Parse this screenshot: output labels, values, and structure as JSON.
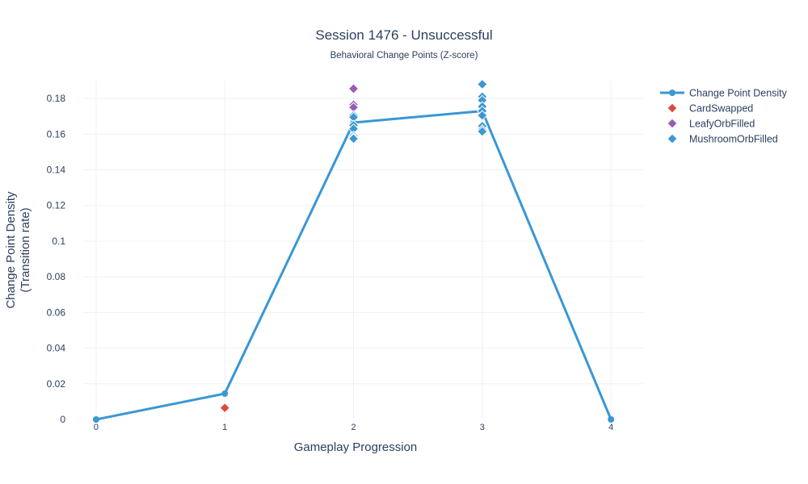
{
  "chart_data": {
    "type": "line",
    "title": "Session 1476 - Unsuccessful",
    "subtitle": "Behavioral Change Points (Z-score)",
    "xlabel": "Gameplay Progression",
    "ylabel_line1": "Change Point Density",
    "ylabel_line2": "(Transition rate)",
    "xlim": [
      -0.1,
      4.25
    ],
    "ylim": [
      0,
      0.19
    ],
    "x_ticks": [
      0,
      1,
      2,
      3,
      4
    ],
    "x_tick_labels": [
      "0",
      "1",
      "2",
      "3",
      "4"
    ],
    "y_ticks": [
      0,
      0.02,
      0.04,
      0.06,
      0.08,
      0.1,
      0.12,
      0.14,
      0.16,
      0.18
    ],
    "y_tick_labels": [
      "0",
      "0.02",
      "0.04",
      "0.06",
      "0.08",
      "0.1",
      "0.12",
      "0.14",
      "0.16",
      "0.18"
    ],
    "grid": true,
    "legend_position": "top-right",
    "series": [
      {
        "name": "Change Point Density",
        "kind": "line",
        "color": "#3a97d4",
        "x": [
          0,
          1,
          2,
          3,
          4
        ],
        "y": [
          0,
          0.0145,
          0.1665,
          0.173,
          0
        ]
      },
      {
        "name": "CardSwapped",
        "kind": "markers",
        "color": "#e0493a",
        "x": [
          1
        ],
        "y": [
          0.0065
        ]
      },
      {
        "name": "LeafyOrbFilled",
        "kind": "markers",
        "color": "#9b59b6",
        "x": [
          2,
          2,
          2
        ],
        "y": [
          0.1855,
          0.1765,
          0.175
        ]
      },
      {
        "name": "MushroomOrbFilled",
        "kind": "markers",
        "color": "#3a97d4",
        "x": [
          2,
          2,
          2,
          2,
          2,
          2,
          2,
          3,
          3,
          3,
          3,
          3,
          3,
          3,
          3,
          3
        ],
        "y": [
          0.1705,
          0.1695,
          0.165,
          0.163,
          0.159,
          0.158,
          0.1575,
          0.188,
          0.181,
          0.179,
          0.1755,
          0.173,
          0.1705,
          0.1645,
          0.1625,
          0.1615
        ]
      }
    ]
  }
}
